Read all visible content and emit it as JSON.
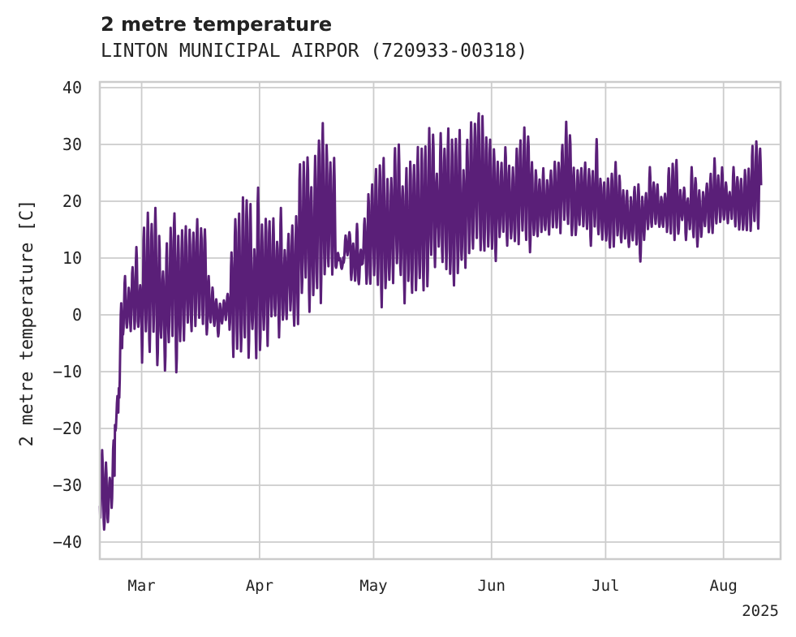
{
  "chart_data": {
    "type": "line",
    "title": "2 metre temperature",
    "subtitle": "LINTON MUNICIPAL AIRPOR (720933-00318)",
    "ylabel": "2 metre temperature [C]",
    "xlabel": "",
    "year_label": "2025",
    "ylim": [
      -43,
      41
    ],
    "xlim": [
      "2025-02-18",
      "2025-08-16"
    ],
    "yticks": [
      40,
      30,
      20,
      10,
      0,
      -10,
      -20,
      -30,
      -40
    ],
    "xticks": [
      {
        "date": "2025-03-01",
        "label": "Mar"
      },
      {
        "date": "2025-04-01",
        "label": "Apr"
      },
      {
        "date": "2025-05-01",
        "label": "May"
      },
      {
        "date": "2025-06-01",
        "label": "Jun"
      },
      {
        "date": "2025-07-01",
        "label": "Jul"
      },
      {
        "date": "2025-08-01",
        "label": "Aug"
      }
    ],
    "grid": true,
    "series": [
      {
        "color": "#5a1f78",
        "x": [
          "2025-02-18",
          "2025-02-19",
          "2025-02-20",
          "2025-02-21",
          "2025-02-22",
          "2025-02-23",
          "2025-02-24",
          "2025-02-25",
          "2025-02-26",
          "2025-02-27",
          "2025-02-28",
          "2025-03-01",
          "2025-03-02",
          "2025-03-03",
          "2025-03-04",
          "2025-03-05",
          "2025-03-06",
          "2025-03-07",
          "2025-03-08",
          "2025-03-09",
          "2025-03-10",
          "2025-03-11",
          "2025-03-12",
          "2025-03-13",
          "2025-03-14",
          "2025-03-15",
          "2025-03-16",
          "2025-03-17",
          "2025-03-18",
          "2025-03-19",
          "2025-03-20",
          "2025-03-21",
          "2025-03-22",
          "2025-03-23",
          "2025-03-24",
          "2025-03-25",
          "2025-03-26",
          "2025-03-27",
          "2025-03-28",
          "2025-03-29",
          "2025-03-30",
          "2025-03-31",
          "2025-04-01",
          "2025-04-02",
          "2025-04-03",
          "2025-04-04",
          "2025-04-05",
          "2025-04-06",
          "2025-04-07",
          "2025-04-08",
          "2025-04-09",
          "2025-04-10",
          "2025-04-11",
          "2025-04-12",
          "2025-04-13",
          "2025-04-14",
          "2025-04-15",
          "2025-04-16",
          "2025-04-17",
          "2025-04-18",
          "2025-04-19",
          "2025-04-20",
          "2025-04-21",
          "2025-04-22",
          "2025-04-23",
          "2025-04-24",
          "2025-04-25",
          "2025-04-26",
          "2025-04-27",
          "2025-04-28",
          "2025-04-29",
          "2025-04-30",
          "2025-05-01",
          "2025-05-02",
          "2025-05-03",
          "2025-05-04",
          "2025-05-05",
          "2025-05-06",
          "2025-05-07",
          "2025-05-08",
          "2025-05-09",
          "2025-05-10",
          "2025-05-11",
          "2025-05-12",
          "2025-05-13",
          "2025-05-14",
          "2025-05-15",
          "2025-05-16",
          "2025-05-17",
          "2025-05-18",
          "2025-05-19",
          "2025-05-20",
          "2025-05-21",
          "2025-05-22",
          "2025-05-23",
          "2025-05-24",
          "2025-05-25",
          "2025-05-26",
          "2025-05-27",
          "2025-05-28",
          "2025-05-29",
          "2025-05-30",
          "2025-05-31",
          "2025-06-01",
          "2025-06-02",
          "2025-06-03",
          "2025-06-04",
          "2025-06-05",
          "2025-06-06",
          "2025-06-07",
          "2025-06-08",
          "2025-06-09",
          "2025-06-10",
          "2025-06-11",
          "2025-06-12",
          "2025-06-13",
          "2025-06-14",
          "2025-06-15",
          "2025-06-16",
          "2025-06-17",
          "2025-06-18",
          "2025-06-19",
          "2025-06-20",
          "2025-06-21",
          "2025-06-22",
          "2025-06-23",
          "2025-06-24",
          "2025-06-25",
          "2025-06-26",
          "2025-06-27",
          "2025-06-28",
          "2025-06-29",
          "2025-06-30",
          "2025-07-01",
          "2025-07-02",
          "2025-07-03",
          "2025-07-04",
          "2025-07-05",
          "2025-07-06",
          "2025-07-07",
          "2025-07-08",
          "2025-07-09",
          "2025-07-10",
          "2025-07-11",
          "2025-07-12",
          "2025-07-13",
          "2025-07-14",
          "2025-07-15",
          "2025-07-16",
          "2025-07-17",
          "2025-07-18",
          "2025-07-19",
          "2025-07-20",
          "2025-07-21",
          "2025-07-22",
          "2025-07-23",
          "2025-07-24",
          "2025-07-25",
          "2025-07-26",
          "2025-07-27",
          "2025-07-28",
          "2025-07-29",
          "2025-07-30",
          "2025-07-31",
          "2025-08-01",
          "2025-08-02",
          "2025-08-03",
          "2025-08-04",
          "2025-08-05",
          "2025-08-06",
          "2025-08-07",
          "2025-08-08",
          "2025-08-09",
          "2025-08-10",
          "2025-08-11",
          "2025-08-12",
          "2025-08-13",
          "2025-08-14",
          "2025-08-15"
        ],
        "y_min": [
          -36,
          -39,
          -37,
          -34,
          -21,
          -16,
          -4,
          -3,
          -3,
          -3,
          -3,
          -9,
          -5,
          -8,
          -3,
          -11,
          -5,
          -11,
          -7,
          -4,
          -11,
          -7,
          -5,
          -3,
          -4,
          -2,
          -2,
          -3,
          -4,
          -2,
          -2,
          -4,
          -2,
          -1,
          -4,
          -9,
          -6,
          -9,
          -6,
          -9,
          -4,
          -8,
          -7,
          -5,
          -6,
          -2,
          -1,
          -4,
          -2,
          -2,
          0,
          -4,
          -2,
          3,
          4,
          0,
          1,
          3,
          2,
          5,
          7,
          6,
          8,
          10,
          9,
          10,
          6,
          5,
          5,
          9,
          4,
          4,
          6,
          3,
          1,
          4,
          4,
          5,
          7,
          6,
          2,
          4,
          2,
          3,
          4,
          4,
          4,
          8,
          8,
          10,
          8,
          8,
          5,
          3,
          6,
          8,
          8,
          10,
          9,
          13,
          9,
          10,
          12,
          10,
          8,
          13,
          13,
          12,
          13,
          11,
          12,
          13,
          12,
          11,
          13,
          13,
          14,
          14,
          14,
          15,
          14,
          14,
          15,
          15,
          14,
          13,
          15,
          15,
          14,
          12,
          15,
          13,
          13,
          12,
          11,
          12,
          13,
          12,
          13,
          11,
          13,
          12,
          8,
          13,
          14,
          15,
          16,
          15,
          15,
          14,
          13,
          13,
          14,
          16,
          13,
          14,
          13,
          12,
          13,
          15,
          14,
          13,
          16,
          16,
          16,
          16,
          16,
          15,
          15,
          14,
          14,
          14,
          15,
          15,
          15,
          15
        ],
        "y_max": [
          -23,
          -26,
          -28,
          -22,
          -14,
          4,
          7,
          5,
          9,
          12,
          6,
          17,
          18,
          18,
          19,
          15,
          9,
          13,
          16,
          19,
          14,
          17,
          17,
          15,
          16,
          17,
          16,
          17,
          7,
          5,
          3,
          2,
          3,
          4,
          11,
          19,
          18,
          22,
          23,
          20,
          12,
          24,
          16,
          19,
          18,
          17,
          14,
          19,
          12,
          16,
          16,
          18,
          28,
          27,
          30,
          24,
          28,
          33,
          34,
          31,
          29,
          28,
          11,
          8,
          14,
          15,
          13,
          16,
          12,
          17,
          22,
          25,
          26,
          27,
          29,
          24,
          26,
          31,
          30,
          24,
          26,
          28,
          29,
          30,
          30,
          31,
          33,
          34,
          26,
          32,
          31,
          33,
          32,
          34,
          33,
          26,
          32,
          34,
          36,
          37,
          35,
          33,
          31,
          30,
          29,
          27,
          30,
          27,
          26,
          31,
          32,
          33,
          33,
          27,
          26,
          25,
          26,
          24,
          26,
          27,
          28,
          31,
          34,
          33,
          26,
          26,
          27,
          27,
          26,
          26,
          31,
          25,
          24,
          24,
          26,
          27,
          25,
          23,
          22,
          21,
          23,
          23,
          22,
          22,
          26,
          24,
          23,
          21,
          22,
          26,
          27,
          28,
          22,
          23,
          21,
          26,
          25,
          22,
          22,
          24,
          25,
          28,
          25,
          26,
          24,
          22,
          26,
          25,
          24,
          26,
          27,
          30,
          31,
          30
        ]
      }
    ]
  }
}
